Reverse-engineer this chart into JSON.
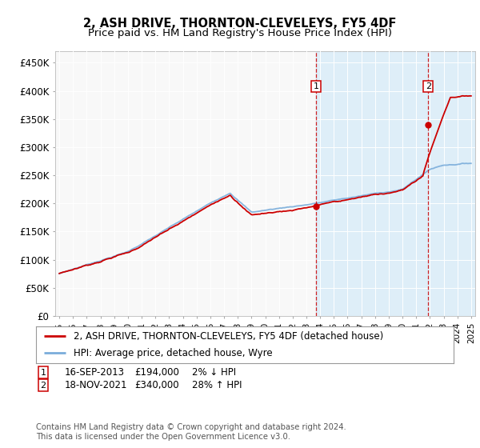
{
  "title": "2, ASH DRIVE, THORNTON-CLEVELEYS, FY5 4DF",
  "subtitle": "Price paid vs. HM Land Registry's House Price Index (HPI)",
  "ylabel_ticks": [
    "£0",
    "£50K",
    "£100K",
    "£150K",
    "£200K",
    "£250K",
    "£300K",
    "£350K",
    "£400K",
    "£450K"
  ],
  "ytick_values": [
    0,
    50000,
    100000,
    150000,
    200000,
    250000,
    300000,
    350000,
    400000,
    450000
  ],
  "ylim": [
    0,
    470000
  ],
  "xlim_start": 1994.7,
  "xlim_end": 2025.3,
  "xtick_years": [
    1995,
    1996,
    1997,
    1998,
    1999,
    2000,
    2001,
    2002,
    2003,
    2004,
    2005,
    2006,
    2007,
    2008,
    2009,
    2010,
    2011,
    2012,
    2013,
    2014,
    2015,
    2016,
    2017,
    2018,
    2019,
    2020,
    2021,
    2022,
    2023,
    2024,
    2025
  ],
  "hpi_color": "#7aaddb",
  "price_color": "#cc0000",
  "dashed_line_color": "#cc0000",
  "background_color": "#e8f4fb",
  "shade_color": "#daedf8",
  "grid_color": "#ffffff",
  "sale1_year": 2013.71,
  "sale1_price": 194000,
  "sale2_year": 2021.88,
  "sale2_price": 340000,
  "legend_line1": "2, ASH DRIVE, THORNTON-CLEVELEYS, FY5 4DF (detached house)",
  "legend_line2": "HPI: Average price, detached house, Wyre",
  "footer": "Contains HM Land Registry data © Crown copyright and database right 2024.\nThis data is licensed under the Open Government Licence v3.0."
}
